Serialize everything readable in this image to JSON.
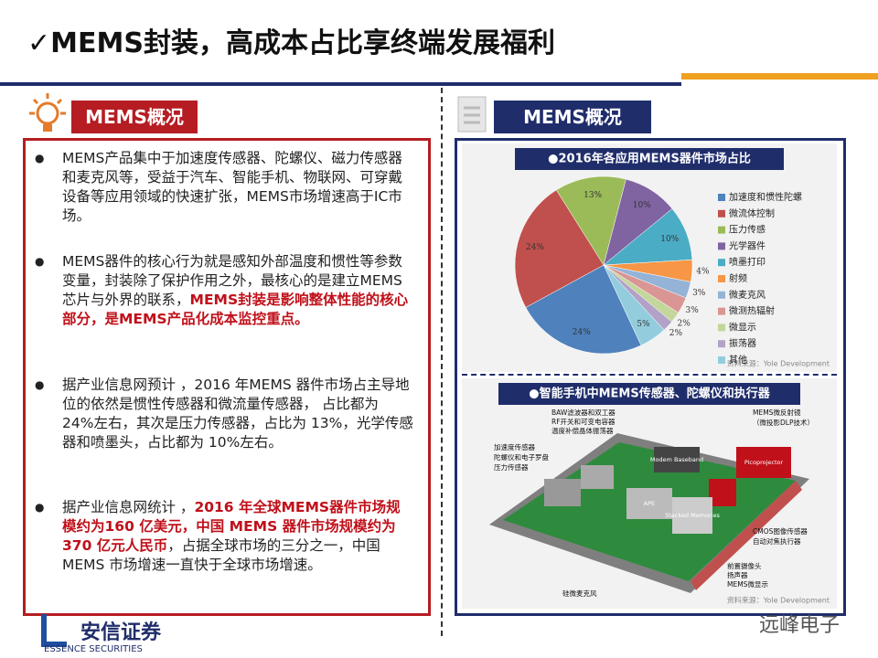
{
  "header": {
    "title": "✓MEMS封装，高成本占比享终端发展福利"
  },
  "left_panel": {
    "heading": "MEMS概况",
    "bullets": [
      {
        "runs": [
          {
            "text": "MEMS产品集中于加速度传感器、陀螺仪、磁力传感器和麦克风等，受益于汽车、智能手机、物联网、可穿戴设备等应用领域的快速扩张，MEMS市场增速高于IC市场。",
            "highlight": false
          }
        ]
      },
      {
        "runs": [
          {
            "text": "MEMS器件的核心行为就是感知外部温度和惯性等参数变量，封装除了保护作用之外，最核心的是建立MEMS芯片与外界的联系，",
            "highlight": false
          },
          {
            "text": "MEMS封装是影响整体性能的核心部分，是MEMS产品化成本监控重点。",
            "highlight": true
          }
        ]
      },
      {
        "runs": [
          {
            "text": "据产业信息网预计 ，2016 年MEMS 器件市场占主导地位的依然是惯性传感器和微流量传感器， 占比都为 24%左右，其次是压力传感器，占比为 13%，光学传感器和喷墨头，占比都为 10%左右。",
            "highlight": false
          }
        ]
      },
      {
        "runs": [
          {
            "text": "据产业信息网统计 ，",
            "highlight": false
          },
          {
            "text": "2016 年全球MEMS器件市场规模约为160 亿美元，中国 MEMS 器件市场规模约为 370 亿元人民币",
            "highlight": true
          },
          {
            "text": "，占据全球市场的三分之一，中国 MEMS 市场增速一直快于全球市场增速。",
            "highlight": false
          }
        ]
      }
    ]
  },
  "right_panel": {
    "heading": "MEMS概况",
    "phone": {
      "title": "●智能手机中MEMS传感器、陀螺仪和执行器",
      "callouts": [
        "BAW滤波器和双工器",
        "RF开关和可变电容器",
        "温度补偿晶体振荡器",
        "加速度传感器",
        "陀螺仪和电子罗盘",
        "压力传感器",
        "MEMS微反射镜",
        "（微投影DLP技术）",
        "CMOS图像传感器",
        "自动对焦执行器",
        "前置摄像头",
        "扬声器",
        "MEMS微显示",
        "硅微麦克风"
      ],
      "chips": [
        "Modem Baseband",
        "APE",
        "Stacked Memories",
        "Picoprojector"
      ],
      "source": "资料来源：Yole Development"
    }
  },
  "chart_data": {
    "type": "pie",
    "title": "●2016年各应用MEMS器件市场占比",
    "categories": [
      "加速度和惯性陀螺",
      "微流体控制",
      "压力传感",
      "光学器件",
      "喷墨打印",
      "射频",
      "微麦克风",
      "微测热辐射",
      "微显示",
      "振荡器",
      "其他"
    ],
    "values": [
      24,
      24,
      13,
      10,
      10,
      4,
      3,
      3,
      2,
      2,
      5
    ],
    "value_labels": [
      "24%",
      "24%",
      "13%",
      "10%",
      "10%",
      "4%",
      "3%",
      "3%",
      "2%",
      "2%",
      "5%"
    ],
    "colors": [
      "#4f81bd",
      "#c0504d",
      "#9bbb59",
      "#8064a2",
      "#4bacc6",
      "#f79646",
      "#95b3d7",
      "#d99694",
      "#c3d69b",
      "#b3a2c7",
      "#93cddd"
    ],
    "legend": "right",
    "source": "资料来源：Yole Development"
  },
  "footer": {
    "logo": "安信证券",
    "logo_en": "ESSENCE SECURITIES",
    "watermark": "远峰电子"
  }
}
